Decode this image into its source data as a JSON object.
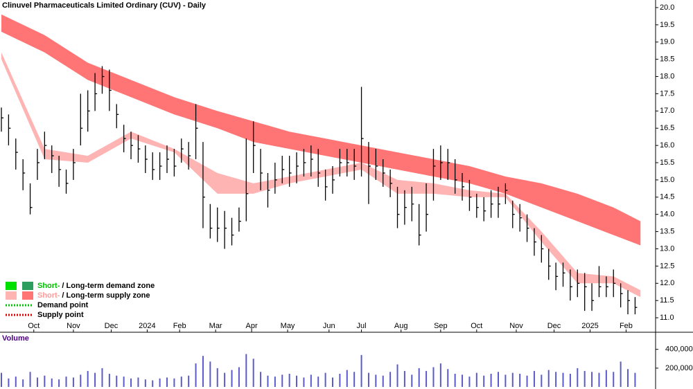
{
  "chart_data": {
    "type": "ohlc",
    "title": "Clinuvel Pharmaceuticals Limited Ordinary (CUV) - Daily",
    "color": "#000000",
    "xlim": [
      0,
      363
    ],
    "xticks": [
      {
        "value": 18,
        "label": "Oct"
      },
      {
        "value": 40,
        "label": "Nov"
      },
      {
        "value": 61,
        "label": "Dec"
      },
      {
        "value": 81,
        "label": "2024"
      },
      {
        "value": 99,
        "label": "Feb"
      },
      {
        "value": 119,
        "label": "Mar"
      },
      {
        "value": 139,
        "label": "Apr"
      },
      {
        "value": 159,
        "label": "May"
      },
      {
        "value": 182,
        "label": "Jun"
      },
      {
        "value": 200,
        "label": "Jul"
      },
      {
        "value": 222,
        "label": "Aug"
      },
      {
        "value": 244,
        "label": "Sep"
      },
      {
        "value": 264,
        "label": "Oct"
      },
      {
        "value": 286,
        "label": "Nov"
      },
      {
        "value": 307,
        "label": "Dec"
      },
      {
        "value": 327,
        "label": "2025"
      },
      {
        "value": 347,
        "label": "Feb"
      }
    ],
    "ylim": [
      10.6,
      20.2
    ],
    "yticks": [
      {
        "value": 11,
        "label": "11.0"
      },
      11.5,
      {
        "value": 12,
        "label": "12.0"
      },
      12.5,
      {
        "value": 13,
        "label": "13.0"
      },
      13.5,
      {
        "value": 14,
        "label": "14.0"
      },
      14.5,
      {
        "value": 15,
        "label": "15.0"
      },
      15.5,
      {
        "value": 16,
        "label": "16.0"
      },
      16.5,
      {
        "value": 17,
        "label": "17.0"
      },
      17.5,
      {
        "value": 18,
        "label": "18.0"
      },
      18.5,
      {
        "value": 19,
        "label": "19.0"
      },
      19.5,
      {
        "value": 20,
        "label": "20.0"
      }
    ],
    "x": [
      0,
      4,
      8,
      12,
      16,
      20,
      24,
      28,
      32,
      36,
      40,
      44,
      48,
      52,
      56,
      60,
      64,
      68,
      72,
      76,
      80,
      84,
      88,
      92,
      96,
      100,
      104,
      108,
      112,
      116,
      120,
      124,
      128,
      132,
      136,
      140,
      144,
      148,
      152,
      156,
      160,
      164,
      168,
      172,
      176,
      180,
      184,
      188,
      192,
      196,
      200,
      204,
      208,
      212,
      216,
      220,
      224,
      228,
      232,
      236,
      240,
      244,
      248,
      252,
      256,
      260,
      264,
      268,
      272,
      276,
      280,
      284,
      288,
      292,
      296,
      300,
      304,
      308,
      312,
      316,
      320,
      324,
      328,
      332,
      336,
      340,
      344,
      348,
      352
    ],
    "high": [
      17.1,
      16.9,
      16.2,
      15.6,
      14.9,
      15.9,
      16.4,
      16.0,
      15.7,
      15.3,
      15.9,
      17.5,
      17.6,
      18.1,
      18.3,
      18.2,
      17.2,
      16.6,
      16.4,
      16.3,
      16.0,
      15.8,
      15.8,
      16.0,
      15.9,
      16.2,
      16.1,
      17.2,
      16.1,
      14.3,
      14.2,
      14.1,
      13.9,
      14.2,
      16.2,
      16.7,
      15.9,
      15.2,
      15.5,
      15.7,
      15.7,
      15.8,
      15.9,
      16.0,
      15.9,
      15.3,
      15.4,
      15.9,
      15.9,
      15.9,
      17.7,
      16.1,
      15.9,
      15.6,
      15.3,
      14.8,
      14.7,
      14.8,
      14.3,
      14.9,
      15.9,
      16.0,
      15.9,
      15.6,
      15.2,
      15.0,
      14.6,
      14.5,
      14.7,
      14.8,
      14.9,
      14.4,
      14.3,
      14.0,
      13.6,
      13.4,
      13.0,
      12.6,
      12.6,
      12.4,
      12.4,
      12.3,
      12.0,
      12.5,
      12.2,
      12.4,
      12.0,
      11.8,
      11.6
    ],
    "low": [
      16.4,
      16.0,
      15.3,
      14.7,
      14.0,
      15.0,
      15.6,
      15.2,
      14.8,
      14.6,
      15.0,
      16.0,
      16.4,
      17.0,
      17.5,
      17.0,
      16.5,
      15.8,
      15.6,
      15.5,
      15.2,
      15.0,
      15.0,
      15.2,
      15.1,
      15.5,
      15.3,
      15.6,
      13.6,
      13.3,
      13.2,
      13.0,
      13.1,
      13.5,
      13.8,
      15.2,
      14.7,
      14.2,
      14.6,
      14.9,
      14.8,
      14.9,
      15.1,
      15.1,
      14.8,
      14.4,
      14.6,
      15.1,
      15.1,
      15.0,
      15.1,
      14.3,
      15.0,
      14.8,
      14.5,
      13.6,
      13.7,
      13.8,
      13.1,
      13.5,
      14.4,
      15.0,
      15.0,
      14.6,
      14.4,
      14.1,
      13.9,
      13.8,
      13.9,
      13.9,
      14.3,
      13.6,
      13.5,
      13.2,
      12.8,
      12.6,
      12.1,
      11.8,
      11.9,
      11.5,
      11.6,
      11.2,
      11.2,
      11.6,
      11.6,
      11.6,
      11.3,
      11.1,
      11.1
    ],
    "close": [
      16.8,
      16.5,
      15.8,
      15.2,
      14.2,
      15.5,
      16.0,
      15.7,
      15.3,
      14.9,
      15.5,
      16.5,
      17.0,
      17.5,
      18.0,
      17.6,
      16.9,
      16.2,
      16.0,
      15.9,
      15.6,
      15.3,
      15.4,
      15.6,
      15.4,
      15.9,
      15.7,
      16.5,
      14.5,
      13.6,
      13.6,
      13.6,
      13.4,
      13.8,
      14.6,
      16.0,
      15.2,
      14.7,
      15.0,
      15.3,
      15.2,
      15.4,
      15.5,
      15.6,
      15.2,
      14.8,
      15.0,
      15.5,
      15.5,
      15.4,
      16.2,
      15.4,
      15.4,
      15.2,
      14.9,
      14.0,
      14.2,
      14.3,
      13.4,
      14.0,
      15.4,
      15.5,
      15.5,
      15.0,
      14.8,
      14.5,
      14.2,
      14.1,
      14.3,
      14.3,
      14.7,
      14.0,
      13.9,
      13.6,
      13.2,
      13.0,
      12.5,
      12.2,
      12.3,
      11.9,
      12.0,
      11.9,
      11.5,
      11.9,
      11.9,
      12.0,
      11.7,
      11.5,
      11.3
    ],
    "bands": [
      {
        "color": "#ff7474",
        "x": [
          0,
          24,
          48,
          72,
          96,
          120,
          140,
          160,
          180,
          200,
          220,
          240,
          260,
          280,
          300,
          320,
          340,
          355
        ],
        "upper": [
          19.8,
          19.2,
          18.4,
          17.9,
          17.4,
          17.0,
          16.7,
          16.4,
          16.2,
          16.0,
          15.8,
          15.6,
          15.4,
          15.1,
          14.9,
          14.6,
          14.2,
          13.8
        ],
        "lower": [
          19.3,
          18.7,
          17.9,
          17.4,
          16.9,
          16.5,
          16.1,
          15.9,
          15.7,
          15.5,
          15.3,
          15.1,
          14.9,
          14.6,
          14.2,
          13.8,
          13.4,
          13.1
        ]
      },
      {
        "color": "#ffb4b4",
        "x": [
          0,
          24,
          48,
          72,
          96,
          120,
          140,
          160,
          180,
          200,
          220,
          240,
          260,
          280,
          300,
          320,
          340,
          355
        ],
        "upper": [
          18.7,
          15.9,
          15.7,
          16.4,
          15.9,
          15.2,
          14.9,
          15.1,
          15.3,
          15.5,
          15.0,
          14.9,
          14.7,
          14.6,
          13.5,
          12.3,
          12.2,
          11.8
        ],
        "lower": [
          18.5,
          15.6,
          15.5,
          16.2,
          15.8,
          14.6,
          14.6,
          14.9,
          15.1,
          15.3,
          14.6,
          14.6,
          14.5,
          14.5,
          13.2,
          12.0,
          12.0,
          11.6
        ]
      }
    ],
    "legend": [
      {
        "short": "Short-",
        "long": "/ Long-term demand zone",
        "colors": [
          "#00e000",
          "#2e9e5e"
        ],
        "text_color": "#00c000"
      },
      {
        "short": "Short-",
        "long": "/ Long-term supply zone",
        "colors": [
          "#ffb4b4",
          "#ff7474"
        ],
        "text_color": "#ff9a9a"
      },
      {
        "long": "Demand point",
        "colors": [
          "#00c000"
        ],
        "dotted": true
      },
      {
        "long": "Supply point",
        "colors": [
          "#e00000"
        ],
        "dotted": true
      }
    ],
    "volume": {
      "label": "Volume",
      "color": "#5a5ac8",
      "ylim": [
        0,
        560000
      ],
      "yticks": [
        {
          "value": 200000,
          "label": "200,000"
        },
        {
          "value": 400000,
          "label": "400,000"
        }
      ],
      "values": [
        150000,
        90000,
        110000,
        80000,
        160000,
        100000,
        120000,
        90000,
        80000,
        110000,
        100000,
        130000,
        170000,
        150000,
        200000,
        140000,
        120000,
        110000,
        90000,
        100000,
        80000,
        70000,
        90000,
        100000,
        90000,
        110000,
        120000,
        250000,
        330000,
        270000,
        200000,
        150000,
        180000,
        210000,
        350000,
        300000,
        160000,
        120000,
        110000,
        130000,
        140000,
        120000,
        100000,
        130000,
        110000,
        150000,
        100000,
        140000,
        180000,
        160000,
        340000,
        150000,
        130000,
        120000,
        160000,
        240000,
        170000,
        130000,
        200000,
        170000,
        210000,
        250000,
        190000,
        140000,
        130000,
        110000,
        150000,
        120000,
        140000,
        160000,
        130000,
        150000,
        140000,
        120000,
        170000,
        130000,
        180000,
        160000,
        150000,
        140000,
        200000,
        170000,
        160000,
        150000,
        180000,
        160000,
        270000,
        190000,
        150000
      ]
    }
  }
}
